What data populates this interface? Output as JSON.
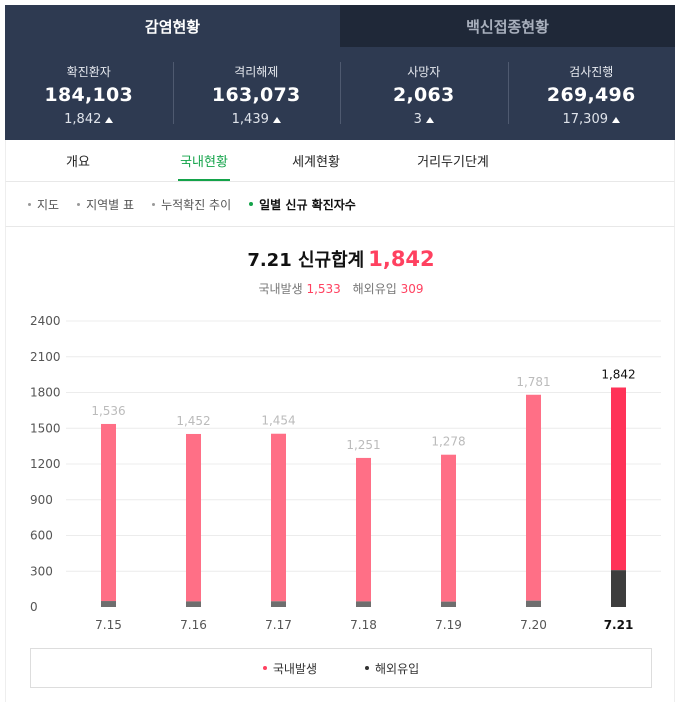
{
  "top_tabs": [
    {
      "label": "감염현황",
      "active": true
    },
    {
      "label": "백신접종현황",
      "active": false
    }
  ],
  "stats": [
    {
      "label": "확진환자",
      "value": "184,103",
      "delta": "1,842"
    },
    {
      "label": "격리해제",
      "value": "163,073",
      "delta": "1,439"
    },
    {
      "label": "사망자",
      "value": "2,063",
      "delta": "3"
    },
    {
      "label": "검사진행",
      "value": "269,496",
      "delta": "17,309"
    }
  ],
  "sub_tabs": [
    {
      "label": "개요",
      "active": false
    },
    {
      "label": "국내현황",
      "active": true
    },
    {
      "label": "세계현황",
      "active": false
    },
    {
      "label": "거리두기단계",
      "active": false
    }
  ],
  "filters": [
    {
      "label": "지도",
      "active": false
    },
    {
      "label": "지역별 표",
      "active": false
    },
    {
      "label": "누적확진 추이",
      "active": false
    },
    {
      "label": "일별 신규 확진자수",
      "active": true
    }
  ],
  "headline": {
    "date": "7.21 신규합계",
    "total": "1,842",
    "domestic_label": "국내발생",
    "domestic_value": "1,533",
    "overseas_label": "해외유입",
    "overseas_value": "309"
  },
  "colors": {
    "domestic": "#ff6f86",
    "domestic_latest": "#ff3358",
    "overseas": "#6e6e6e",
    "overseas_latest": "#3d3d3d",
    "accent_green": "#14a34a"
  },
  "chart_data": {
    "type": "bar",
    "stacked": true,
    "categories": [
      "7.15",
      "7.16",
      "7.17",
      "7.18",
      "7.19",
      "7.20",
      "7.21"
    ],
    "series": [
      {
        "name": "국내발생",
        "values": [
          1486,
          1405,
          1406,
          1204,
          1233,
          1728,
          1533
        ]
      },
      {
        "name": "해외유입",
        "values": [
          50,
          47,
          48,
          47,
          45,
          53,
          309
        ]
      }
    ],
    "totals": [
      1536,
      1452,
      1454,
      1251,
      1278,
      1781,
      1842
    ],
    "total_labels": [
      "1,536",
      "1,452",
      "1,454",
      "1,251",
      "1,278",
      "1,781",
      "1,842"
    ],
    "yticks": [
      0,
      300,
      600,
      900,
      1200,
      1500,
      1800,
      2100,
      2400
    ],
    "ylim": [
      0,
      2400
    ],
    "grid": true,
    "legend_position": "bottom",
    "highlight_last": true
  },
  "legend": [
    {
      "label": "국내발생",
      "color": "#ff4160"
    },
    {
      "label": "해외유입",
      "color": "#333333"
    }
  ]
}
